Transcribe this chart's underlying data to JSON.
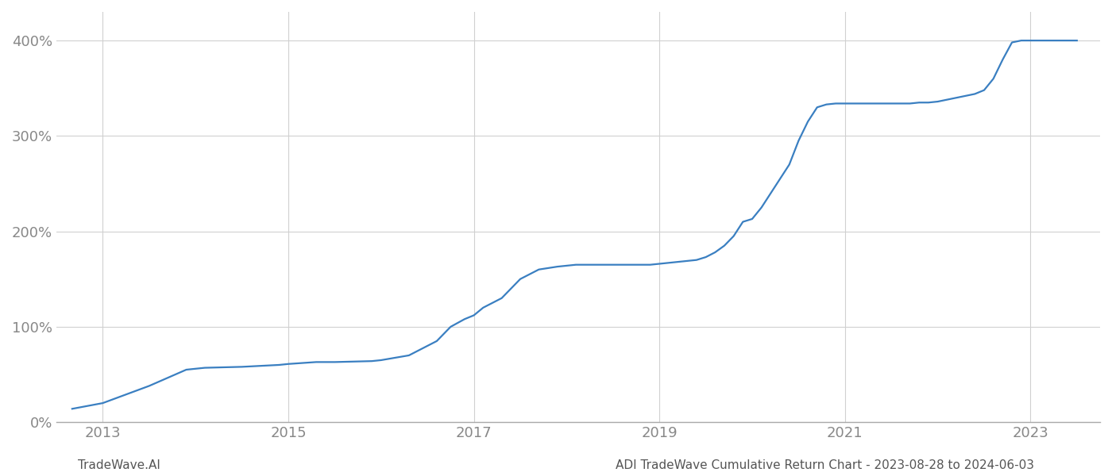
{
  "title": "ADI TradeWave Cumulative Return Chart - 2023-08-28 to 2024-06-03",
  "footer_left": "TradeWave.AI",
  "footer_right": "ADI TradeWave Cumulative Return Chart - 2023-08-28 to 2024-06-03",
  "line_color": "#3a7fc1",
  "background_color": "#ffffff",
  "grid_color": "#d0d0d0",
  "x_values": [
    2012.67,
    2013.0,
    2013.5,
    2013.9,
    2014.1,
    2014.5,
    2014.9,
    2015.0,
    2015.3,
    2015.5,
    2015.9,
    2016.0,
    2016.3,
    2016.6,
    2016.75,
    2016.9,
    2017.0,
    2017.1,
    2017.3,
    2017.5,
    2017.7,
    2017.9,
    2018.1,
    2018.3,
    2018.5,
    2018.7,
    2018.9,
    2019.0,
    2019.2,
    2019.4,
    2019.5,
    2019.6,
    2019.7,
    2019.8,
    2019.9,
    2020.0,
    2020.1,
    2020.2,
    2020.4,
    2020.5,
    2020.6,
    2020.7,
    2020.8,
    2020.9,
    2021.0,
    2021.1,
    2021.2,
    2021.3,
    2021.4,
    2021.5,
    2021.6,
    2021.7,
    2021.8,
    2021.9,
    2022.0,
    2022.1,
    2022.2,
    2022.3,
    2022.4,
    2022.5,
    2022.6,
    2022.7,
    2022.8,
    2022.9,
    2023.0,
    2023.1,
    2023.2,
    2023.3,
    2023.4,
    2023.5
  ],
  "y_values": [
    14,
    20,
    38,
    55,
    57,
    58,
    60,
    61,
    63,
    63,
    64,
    65,
    70,
    85,
    100,
    108,
    112,
    120,
    130,
    150,
    160,
    163,
    165,
    165,
    165,
    165,
    165,
    166,
    168,
    170,
    173,
    178,
    185,
    195,
    210,
    213,
    225,
    240,
    270,
    295,
    315,
    330,
    333,
    334,
    334,
    334,
    334,
    334,
    334,
    334,
    334,
    334,
    335,
    335,
    336,
    338,
    340,
    342,
    344,
    348,
    360,
    380,
    398,
    400,
    400,
    400,
    400,
    400,
    400,
    400
  ],
  "xlim": [
    2012.5,
    2023.75
  ],
  "ylim": [
    0,
    430
  ],
  "yticks": [
    0,
    100,
    200,
    300,
    400
  ],
  "ytick_labels": [
    "0%",
    "100%",
    "200%",
    "300%",
    "400%"
  ],
  "xticks": [
    2013,
    2015,
    2017,
    2019,
    2021,
    2023
  ],
  "xtick_labels": [
    "2013",
    "2015",
    "2017",
    "2019",
    "2021",
    "2023"
  ],
  "line_width": 1.6,
  "tick_color": "#888888",
  "tick_fontsize": 13,
  "footer_fontsize": 11
}
